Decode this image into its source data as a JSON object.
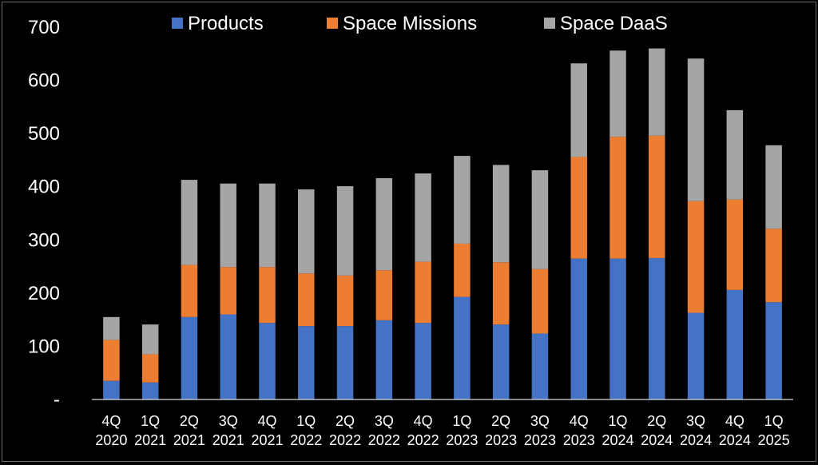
{
  "chart_data": {
    "type": "bar",
    "stacked": true,
    "categories": [
      "4Q\n2020",
      "1Q\n2021",
      "2Q\n2021",
      "3Q\n2021",
      "4Q\n2021",
      "1Q\n2022",
      "2Q\n2022",
      "3Q\n2022",
      "4Q\n2022",
      "1Q\n2023",
      "2Q\n2023",
      "3Q\n2023",
      "4Q\n2023",
      "1Q\n2024",
      "2Q\n2024",
      "3Q\n2024",
      "4Q\n2024",
      "1Q\n2025"
    ],
    "series": [
      {
        "name": "Products",
        "color": "#4472C4",
        "values": [
          35,
          32,
          155,
          160,
          144,
          138,
          138,
          149,
          144,
          193,
          141,
          124,
          265,
          265,
          266,
          163,
          206,
          183
        ]
      },
      {
        "name": "Space Missions",
        "color": "#ED7D31",
        "values": [
          77,
          53,
          98,
          89,
          105,
          99,
          95,
          94,
          115,
          100,
          117,
          121,
          191,
          229,
          230,
          210,
          170,
          138
        ]
      },
      {
        "name": "Space DaaS",
        "color": "#A5A5A5",
        "values": [
          43,
          56,
          160,
          157,
          157,
          158,
          168,
          173,
          166,
          165,
          183,
          186,
          176,
          162,
          164,
          268,
          168,
          157
        ]
      }
    ],
    "yticks": [
      "-",
      "100",
      "200",
      "300",
      "400",
      "500",
      "600",
      "700"
    ],
    "ylim": [
      0,
      700
    ],
    "grid": false,
    "legend": "top-center"
  }
}
